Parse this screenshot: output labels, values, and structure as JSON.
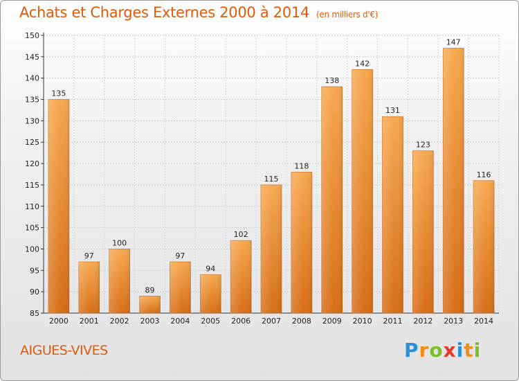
{
  "header": {
    "title": "Achats et Charges Externes 2000 à 2014",
    "subtitle": "(en milliers d'€)"
  },
  "footer": {
    "city": "AIGUES-VIVES",
    "logo_letters": [
      "P",
      "r",
      "o",
      "x",
      "i",
      "t",
      "i"
    ],
    "logo_colors": [
      "#2a8fd6",
      "#f08c1a",
      "#7cbf2a",
      "#e23a2a",
      "#2a8fd6",
      "#f08c1a",
      "#7cbf2a"
    ]
  },
  "chart_data": {
    "type": "bar",
    "title": "Achats et Charges Externes 2000 à 2014",
    "subtitle": "(en milliers d'€)",
    "categories": [
      "2000",
      "2001",
      "2002",
      "2003",
      "2004",
      "2005",
      "2006",
      "2007",
      "2008",
      "2009",
      "2010",
      "2011",
      "2012",
      "2013",
      "2014"
    ],
    "values": [
      135,
      97,
      100,
      89,
      97,
      94,
      102,
      115,
      118,
      138,
      142,
      131,
      123,
      147,
      116
    ],
    "ylim": [
      85,
      150
    ],
    "yticks": [
      85,
      90,
      95,
      100,
      105,
      110,
      115,
      120,
      125,
      130,
      135,
      140,
      145,
      150
    ],
    "grid": true,
    "bar_color_light": "#f7a44e",
    "bar_color_dark": "#d9701a"
  }
}
